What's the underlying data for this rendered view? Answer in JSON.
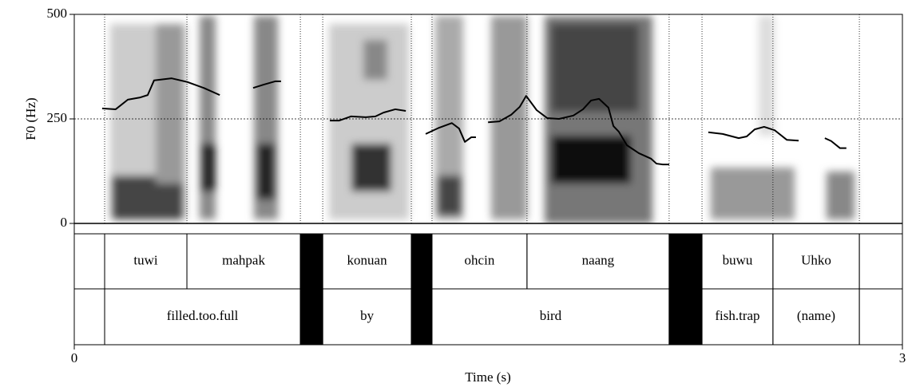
{
  "chart_data": {
    "type": "spectrogram-pitch",
    "y_label": "F0 (Hz)",
    "x_label": "Time (s)",
    "xlim": [
      0,
      3
    ],
    "xticks": [
      0,
      3
    ],
    "ylim": [
      0,
      500
    ],
    "yticks": [
      0,
      250,
      500
    ],
    "grid_values": [
      250
    ],
    "series": [
      {
        "name": null,
        "color": "#000000",
        "x": [
          0.101,
          0.15,
          0.194,
          0.237,
          0.266,
          0.289,
          0.353,
          0.411,
          0.469,
          0.527,
          null,
          0.648,
          0.686,
          0.729,
          0.749,
          null,
          0.926,
          0.96,
          1.003,
          1.056,
          1.091,
          1.12,
          1.163,
          1.201,
          null,
          1.273,
          1.322,
          1.368,
          1.394,
          1.415,
          1.438,
          1.455,
          null,
          1.499,
          1.54,
          1.583,
          1.614,
          1.637,
          1.675,
          1.713,
          1.756,
          1.808,
          1.843,
          1.872,
          1.901,
          1.935,
          1.953,
          1.973,
          2.002,
          2.045,
          2.089,
          2.109,
          2.132,
          2.155,
          null,
          2.297,
          2.349,
          2.407,
          2.436,
          2.465,
          2.499,
          2.537,
          2.581,
          2.624,
          null,
          2.719,
          2.742,
          2.774,
          2.797
        ],
        "values": [
          275,
          273,
          296,
          301,
          307,
          342,
          347,
          338,
          324,
          307,
          null,
          324,
          332,
          340,
          340,
          null,
          246,
          246,
          256,
          254,
          256,
          265,
          273,
          269,
          null,
          214,
          229,
          240,
          227,
          195,
          206,
          206,
          null,
          242,
          244,
          260,
          279,
          305,
          271,
          252,
          250,
          258,
          273,
          294,
          298,
          277,
          233,
          219,
          187,
          168,
          155,
          143,
          141,
          141,
          null,
          218,
          214,
          204,
          208,
          225,
          231,
          223,
          200,
          198,
          null,
          204,
          197,
          180,
          180
        ]
      }
    ],
    "tiers": [
      {
        "intervals": [
          {
            "start": 0,
            "end": 0.11,
            "text": null,
            "pause": false
          },
          {
            "start": 0.11,
            "end": 0.408,
            "text": "tuwi",
            "pause": false
          },
          {
            "start": 0.408,
            "end": 0.819,
            "text": "mahpak",
            "pause": false
          },
          {
            "start": 0.819,
            "end": 0.9,
            "text": null,
            "pause": true
          },
          {
            "start": 0.9,
            "end": 1.221,
            "text": "konuan",
            "pause": false
          },
          {
            "start": 1.221,
            "end": 1.296,
            "text": null,
            "pause": true
          },
          {
            "start": 1.296,
            "end": 1.64,
            "text": "ohcin",
            "pause": false
          },
          {
            "start": 1.64,
            "end": 2.155,
            "text": "naang",
            "pause": false
          },
          {
            "start": 2.155,
            "end": 2.274,
            "text": null,
            "pause": true
          },
          {
            "start": 2.274,
            "end": 2.531,
            "text": "buwu",
            "pause": false
          },
          {
            "start": 2.531,
            "end": 2.844,
            "text": "Uhko",
            "pause": false
          },
          {
            "start": 2.844,
            "end": 3,
            "text": null,
            "pause": false
          }
        ]
      },
      {
        "intervals": [
          {
            "start": 0,
            "end": 0.11,
            "text": null,
            "pause": false
          },
          {
            "start": 0.11,
            "end": 0.819,
            "text": "filled.too.full",
            "pause": false
          },
          {
            "start": 0.819,
            "end": 0.9,
            "text": null,
            "pause": true
          },
          {
            "start": 0.9,
            "end": 1.221,
            "text": "by",
            "pause": false
          },
          {
            "start": 1.221,
            "end": 1.296,
            "text": null,
            "pause": true
          },
          {
            "start": 1.296,
            "end": 2.155,
            "text": "bird",
            "pause": false
          },
          {
            "start": 2.155,
            "end": 2.274,
            "text": null,
            "pause": true
          },
          {
            "start": 2.274,
            "end": 2.531,
            "text": "fish.trap",
            "pause": false
          },
          {
            "start": 2.531,
            "end": 2.844,
            "text": "(name)",
            "pause": false
          },
          {
            "start": 2.844,
            "end": 3,
            "text": null,
            "pause": false
          }
        ]
      }
    ]
  }
}
